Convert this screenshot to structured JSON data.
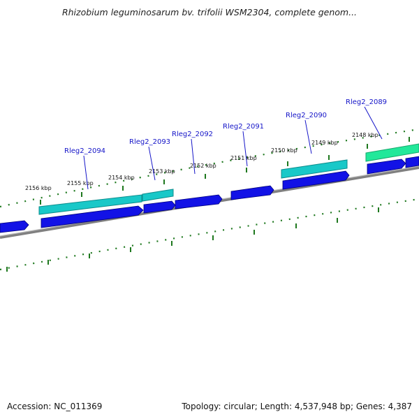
{
  "title": "Rhizobium leguminosarum bv. trifolii WSM2304, complete genom...",
  "footer": {
    "accession": "Accession: NC_011369",
    "summary": "Topology: circular; Length: 4,537,948 bp; Genes: 4,387"
  },
  "colors": {
    "backbone": "#808080",
    "tick": "#1e781e",
    "label": "#1414c8",
    "gene_blue": "#1212e6",
    "gene_cyan": "#19c8c8",
    "gene_green": "#22e89a"
  },
  "kbp_labels": [
    "2156 kbp",
    "2155 kbp",
    "2154 kbp",
    "2153 kbp",
    "2152 kbp",
    "2151 kbp",
    "2150 kbp",
    "2149 kbp",
    "2148 kbp"
  ],
  "gene_labels": [
    "Rleg2_2094",
    "Rleg2_2093",
    "Rleg2_2092",
    "Rleg2_2091",
    "Rleg2_2090",
    "Rleg2_2089"
  ]
}
